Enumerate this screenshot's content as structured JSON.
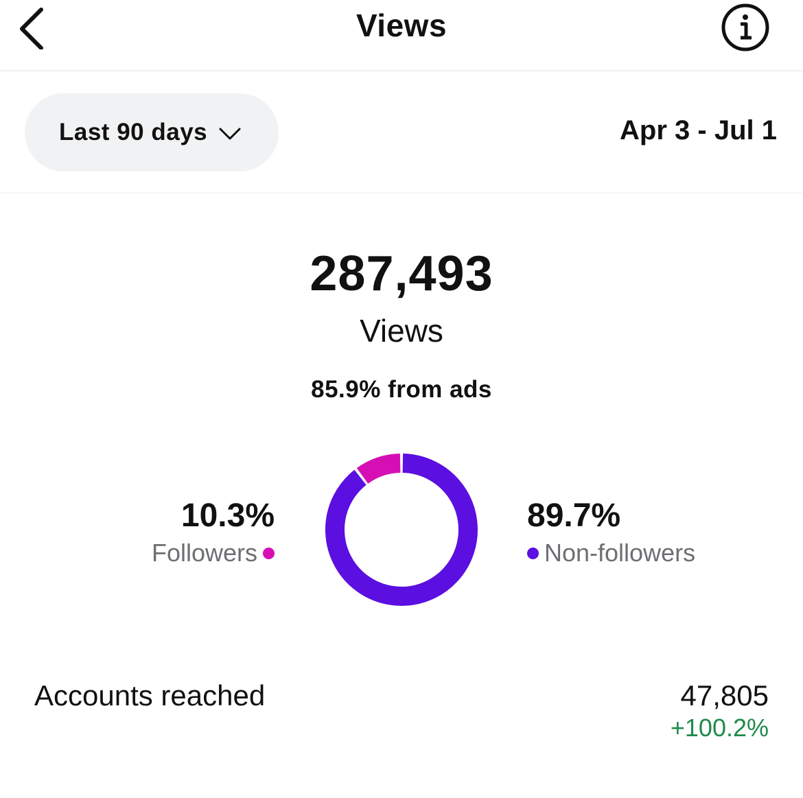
{
  "header": {
    "title": "Views",
    "back_icon": "chevron-left-icon",
    "info_icon": "info-icon"
  },
  "filter": {
    "range_label": "Last 90 days",
    "dropdown_icon": "chevron-down-icon",
    "date_range": "Apr 3 - Jul 1"
  },
  "summary": {
    "total": "287,493",
    "total_label": "Views",
    "ads_note": "85.9% from ads"
  },
  "chart_data": {
    "type": "pie",
    "series": [
      {
        "name": "Followers",
        "label": "10.3%",
        "value": 10.3,
        "color": "#d60fb5"
      },
      {
        "name": "Non-followers",
        "label": "89.7%",
        "value": 89.7,
        "color": "#5b0fe0"
      }
    ]
  },
  "reach": {
    "label": "Accounts reached",
    "value": "47,805",
    "change": "+100.2%",
    "change_color": "#1f8a4c"
  }
}
